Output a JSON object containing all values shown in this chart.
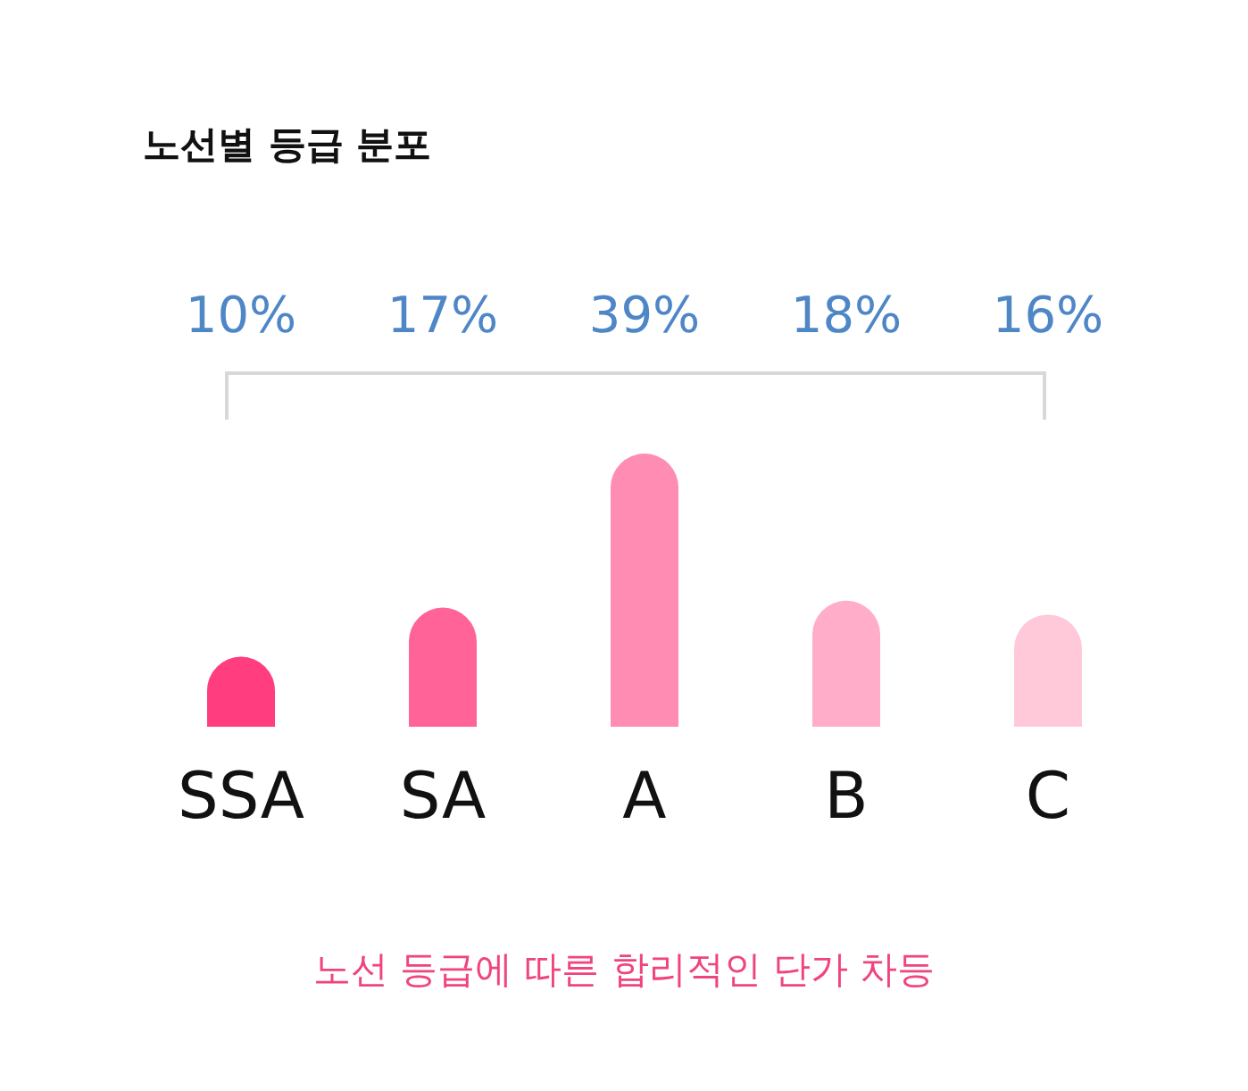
{
  "chart_data": {
    "type": "bar",
    "title": "노선별 등급 분포",
    "categories": [
      "SSA",
      "SA",
      "A",
      "B",
      "C"
    ],
    "values": [
      10,
      17,
      39,
      18,
      16
    ],
    "colors": [
      "#ff3d7f",
      "#ff6397",
      "#ff8cb2",
      "#ffadc8",
      "#ffc9da"
    ],
    "value_labels": [
      "10%",
      "17%",
      "39%",
      "18%",
      "16%"
    ],
    "annotations": [
      "노선 등급에 따른 합리적인 단가 차등"
    ]
  }
}
